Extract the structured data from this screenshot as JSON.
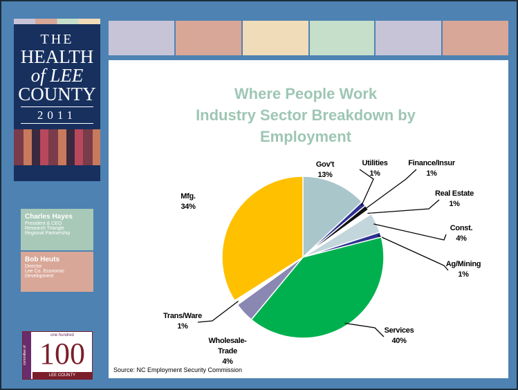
{
  "masthead": {
    "lines": [
      "THE",
      "HEALTH",
      "of LEE",
      "COUNTY",
      "2011"
    ]
  },
  "contacts": [
    {
      "name": "Charles Hayes",
      "lines": [
        "President & CEO",
        "Research Triangle",
        "Regional Partnership"
      ]
    },
    {
      "name": "Bob Heuts",
      "lines": [
        "Director",
        "Lee Co. Economic",
        "Development"
      ]
    }
  ],
  "logo": {
    "number": "100",
    "top": "one hundred",
    "side": "committee of",
    "bottom": "LEE COUNTY"
  },
  "chart_data": {
    "type": "pie",
    "title": "Where People Work",
    "subtitle": "Industry Sector Breakdown by Employment",
    "categories": [
      "Gov't",
      "Utilities",
      "Finance/Insur",
      "Real Estate",
      "Const.",
      "Ag/Mining",
      "Services",
      "Wholesale-Trade",
      "Trans/Ware",
      "Mfg."
    ],
    "values": [
      13,
      1,
      1,
      1,
      4,
      1,
      40,
      4,
      1,
      34
    ],
    "value_labels": [
      "13%",
      "1%",
      "1%",
      "1%",
      "4%",
      "1%",
      "40%",
      "4%",
      "1%",
      "34%"
    ],
    "colors": [
      "#a9c6cb",
      "#2e3192",
      "#111111",
      "#ffffff",
      "#c3d6db",
      "#2e3192",
      "#00b04f",
      "#8a88b3",
      "#ffffff",
      "#ffc000"
    ],
    "source": "Source: NC Employment Security Commission"
  }
}
